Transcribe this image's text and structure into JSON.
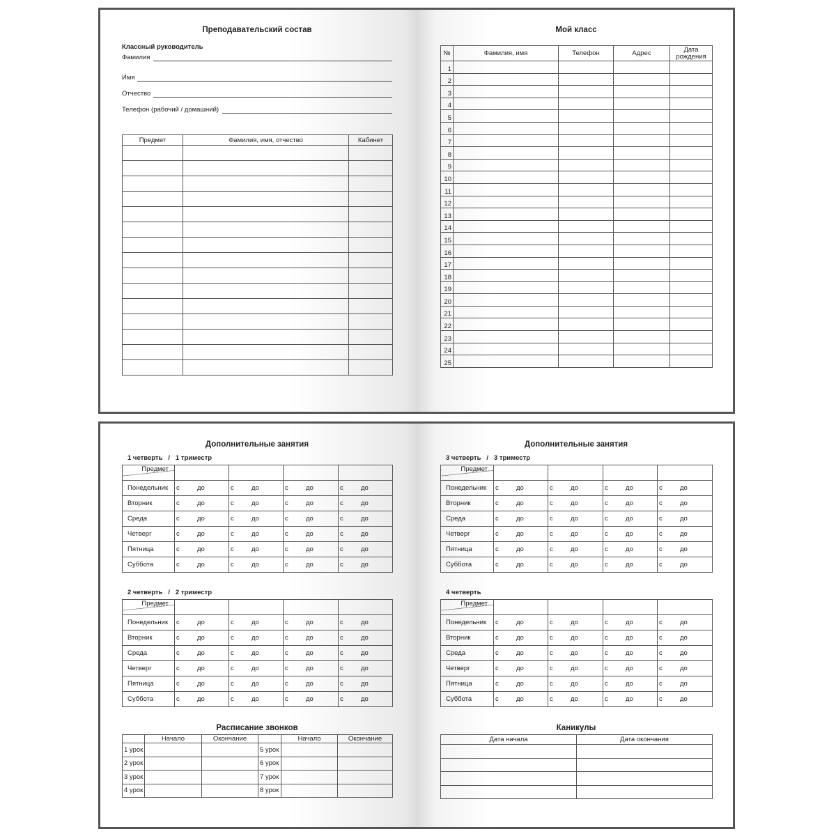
{
  "staff_page": {
    "title": "Преподавательский состав",
    "subtitle": "Классный руководитель",
    "fields": [
      "Фамилия",
      "Имя",
      "Отчество",
      "Телефон (рабочий / домашний)"
    ],
    "table": {
      "headers": [
        "Предмет",
        "Фамилия, имя, отчество",
        "Кабинет"
      ],
      "row_count": 15
    }
  },
  "class_page": {
    "title": "Мой класс",
    "table": {
      "headers": [
        "№",
        "Фамилия, имя",
        "Телефон",
        "Адрес",
        "Дата рождения"
      ],
      "numbers": [
        "1",
        "2",
        "3",
        "4",
        "5",
        "6",
        "7",
        "8",
        "9",
        "10",
        "11",
        "12",
        "13",
        "14",
        "15",
        "16",
        "17",
        "18",
        "19",
        "20",
        "21",
        "22",
        "23",
        "24",
        "25"
      ]
    }
  },
  "extra_left": {
    "title": "Дополнительные занятия",
    "blocks": [
      {
        "label": "1 четверть   /   1 триместр"
      },
      {
        "label": "2 четверть   /   2 триместр"
      }
    ]
  },
  "extra_right": {
    "title": "Дополнительные занятия",
    "blocks": [
      {
        "label": "3 четверть   /   3 триместр"
      },
      {
        "label": "4 четверть"
      }
    ]
  },
  "schedule": {
    "subject_header": "Предмет",
    "days": [
      "Понедельник",
      "Вторник",
      "Среда",
      "Четверг",
      "Пятница",
      "Суббота"
    ],
    "from": "с",
    "to": "до"
  },
  "bells": {
    "title": "Расписание звонков",
    "headers": [
      "",
      "Начало",
      "Окончание",
      "",
      "Начало",
      "Окончание"
    ],
    "left_lessons": [
      "1 урок",
      "2 урок",
      "3 урок",
      "4 урок"
    ],
    "right_lessons": [
      "5 урок",
      "6 урок",
      "7 урок",
      "8 урок"
    ]
  },
  "holidays": {
    "title": "Каникулы",
    "headers": [
      "Дата начала",
      "Дата окончания"
    ],
    "row_count": 4
  }
}
